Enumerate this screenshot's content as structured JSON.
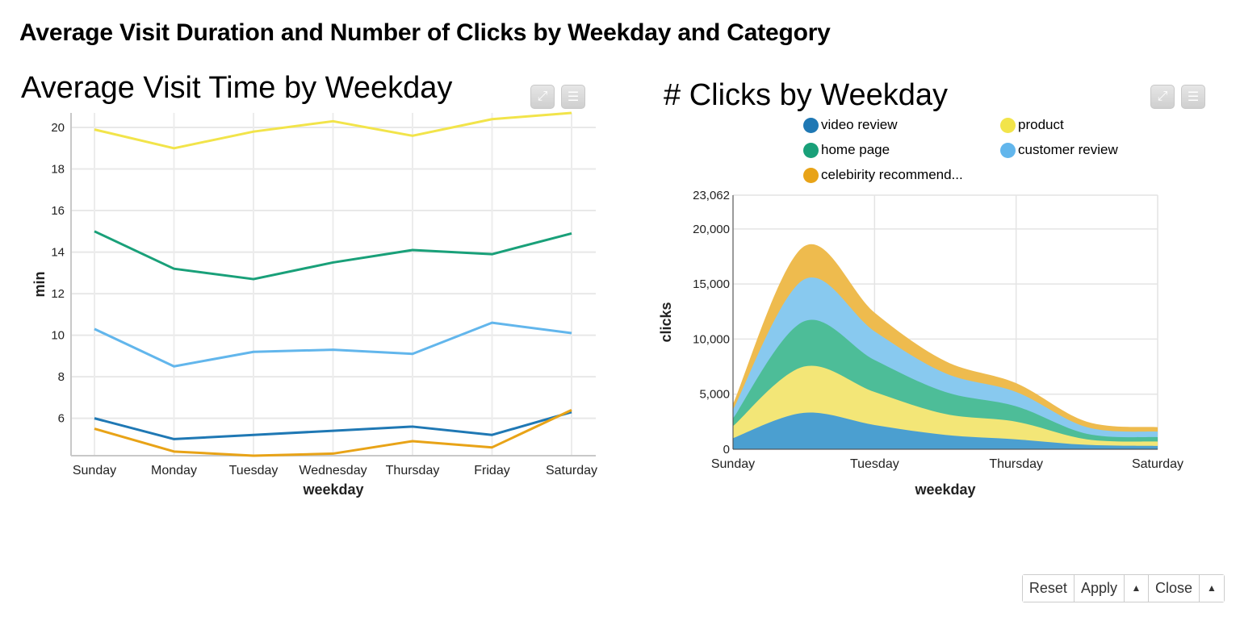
{
  "page": {
    "title": "Average Visit Duration and Number of Clicks by Weekday and Category"
  },
  "toolbar_icons": {
    "fullscreen": "expand-icon",
    "menu": "menu-icon"
  },
  "footer": {
    "reset_label": "Reset",
    "apply_label": "Apply",
    "close_label": "Close",
    "arrow": "▲"
  },
  "chart_data": [
    {
      "type": "line",
      "title": "Average Visit Time by Weekday",
      "xlabel": "weekday",
      "ylabel": "min",
      "categories": [
        "Sunday",
        "Monday",
        "Tuesday",
        "Wednesday",
        "Thursday",
        "Friday",
        "Saturday"
      ],
      "yticks": [
        "6",
        "8",
        "10",
        "12",
        "14",
        "16",
        "18",
        "20"
      ],
      "ylim": [
        4.2,
        20.7
      ],
      "grid": true,
      "legend": "none",
      "series": [
        {
          "color": "#f2e44a",
          "values": [
            19.9,
            19.0,
            19.8,
            20.3,
            19.6,
            20.4,
            20.7
          ]
        },
        {
          "color": "#19a079",
          "values": [
            15.0,
            13.2,
            12.7,
            13.5,
            14.1,
            13.9,
            14.9
          ]
        },
        {
          "color": "#62b6ec",
          "values": [
            10.3,
            8.5,
            9.2,
            9.3,
            9.1,
            10.6,
            10.1
          ]
        },
        {
          "color": "#1f78b4",
          "values": [
            6.0,
            5.0,
            5.2,
            5.4,
            5.6,
            5.2,
            6.3
          ]
        },
        {
          "color": "#e8a317",
          "values": [
            5.5,
            4.4,
            4.2,
            4.3,
            4.9,
            4.6,
            6.4
          ]
        }
      ]
    },
    {
      "type": "area",
      "stacked": true,
      "title": "# Clicks by Weekday",
      "xlabel": "weekday",
      "ylabel": "clicks",
      "categories": [
        "Sunday",
        "Monday",
        "Tuesday",
        "Wednesday",
        "Thursday",
        "Friday",
        "Saturday"
      ],
      "xtick_labels": [
        "Sunday",
        "Tuesday",
        "Thursday",
        "Saturday"
      ],
      "yticks": [
        "0",
        "5,000",
        "10,000",
        "15,000",
        "20,000",
        "23,062"
      ],
      "ylim": [
        0,
        23062
      ],
      "grid": true,
      "legend": "top",
      "legend_entries": [
        {
          "label": "video review",
          "color": "#1f78b4"
        },
        {
          "label": "product",
          "color": "#f2e44a"
        },
        {
          "label": "home page",
          "color": "#19a079"
        },
        {
          "label": "customer review",
          "color": "#62b6ec"
        },
        {
          "label": "celebirity recommend...",
          "color": "#e8a317"
        }
      ],
      "series": [
        {
          "name": "video review",
          "color": "#4b9fd0",
          "values": [
            1000,
            3300,
            2200,
            1300,
            900,
            400,
            300
          ]
        },
        {
          "name": "product",
          "color": "#f3e677",
          "values": [
            1100,
            4200,
            3000,
            1900,
            1600,
            500,
            400
          ]
        },
        {
          "name": "home page",
          "color": "#4dbd98",
          "values": [
            700,
            4100,
            2900,
            2000,
            1400,
            500,
            400
          ]
        },
        {
          "name": "customer review",
          "color": "#88c9ef",
          "values": [
            800,
            3800,
            2600,
            1700,
            1300,
            600,
            500
          ]
        },
        {
          "name": "celebirity recommend...",
          "color": "#eebb4e",
          "values": [
            500,
            3000,
            1700,
            1100,
            800,
            500,
            400
          ]
        }
      ]
    }
  ]
}
